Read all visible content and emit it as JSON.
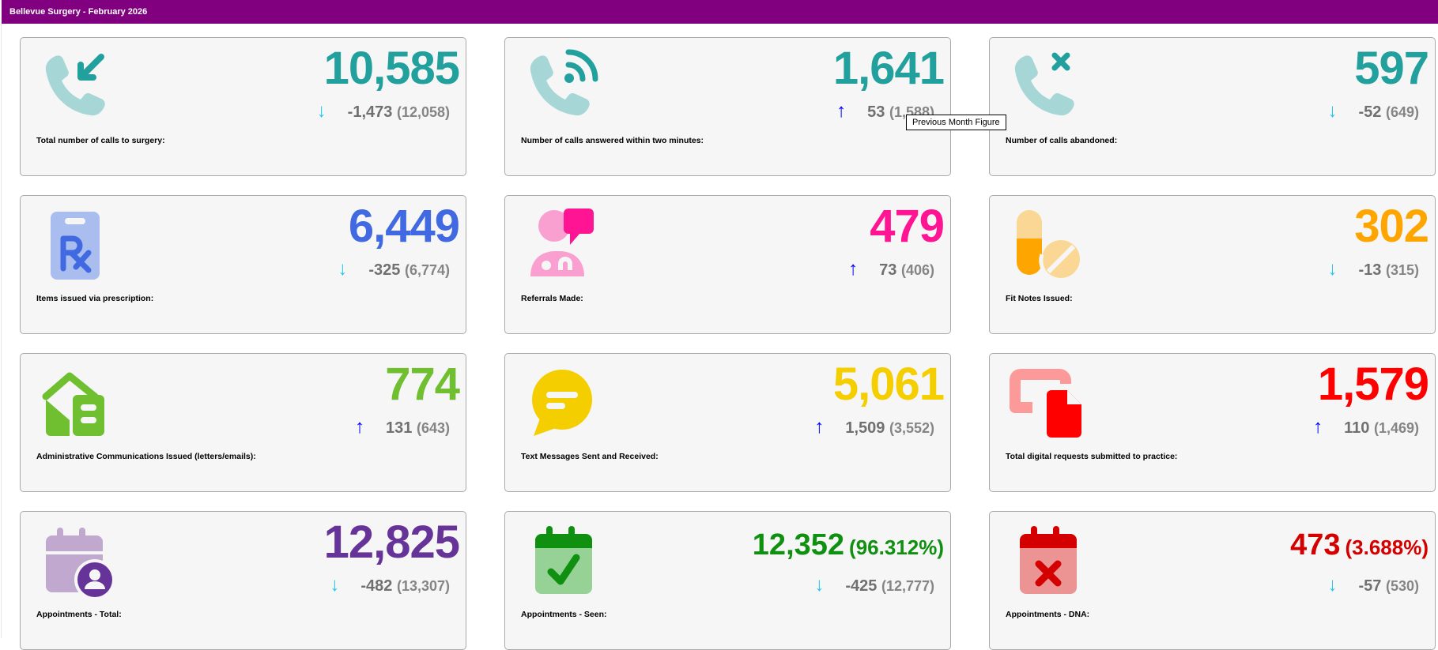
{
  "header": {
    "title": "Bellevue Surgery - February 2026"
  },
  "tooltip": {
    "text": "Previous Month Figure"
  },
  "cards": [
    {
      "id": "calls-total",
      "label": "Total number of calls to surgery:",
      "value": "10,585",
      "percent": "",
      "change": "-1,473",
      "previous": "(12,058)",
      "trend": "down",
      "color": "#21a09d",
      "icon": "phone-incoming-icon"
    },
    {
      "id": "calls-answered",
      "label": "Number of calls answered within two minutes:",
      "value": "1,641",
      "percent": "",
      "change": "53",
      "previous": "(1,588)",
      "trend": "up",
      "color": "#21a09d",
      "icon": "phone-ringing-icon"
    },
    {
      "id": "calls-abandoned",
      "label": "Number of calls abandoned:",
      "value": "597",
      "percent": "",
      "change": "-52",
      "previous": "(649)",
      "trend": "down",
      "color": "#21a09d",
      "icon": "phone-missed-icon"
    },
    {
      "id": "prescriptions",
      "label": "Items issued via prescription:",
      "value": "6,449",
      "percent": "",
      "change": "-325",
      "previous": "(6,774)",
      "trend": "down",
      "color": "#4169e1",
      "icon": "prescription-clipboard-icon"
    },
    {
      "id": "referrals",
      "label": "Referrals Made:",
      "value": "479",
      "percent": "",
      "change": "73",
      "previous": "(406)",
      "trend": "up",
      "color": "#ff1493",
      "icon": "doctor-message-icon"
    },
    {
      "id": "fit-notes",
      "label": "Fit Notes Issued:",
      "value": "302",
      "percent": "",
      "change": "-13",
      "previous": "(315)",
      "trend": "down",
      "color": "#ffa500",
      "icon": "pills-icon"
    },
    {
      "id": "admin-comms",
      "label": "Administrative Communications Issued (letters/emails):",
      "value": "774",
      "percent": "",
      "change": "131",
      "previous": "(643)",
      "trend": "up",
      "color": "#70bf30",
      "icon": "mail-house-icon"
    },
    {
      "id": "text-messages",
      "label": "Text Messages Sent and Received:",
      "value": "5,061",
      "percent": "",
      "change": "1,509",
      "previous": "(3,552)",
      "trend": "up",
      "color": "#f5ce00",
      "icon": "chat-bubble-icon"
    },
    {
      "id": "digital-requests",
      "label": "Total digital requests submitted to practice:",
      "value": "1,579",
      "percent": "",
      "change": "110",
      "previous": "(1,469)",
      "trend": "up",
      "color": "#ff0000",
      "icon": "digital-document-icon"
    },
    {
      "id": "appointments-total",
      "label": "Appointments - Total:",
      "value": "12,825",
      "percent": "",
      "change": "-482",
      "previous": "(13,307)",
      "trend": "down",
      "color": "#663399",
      "icon": "calendar-user-icon"
    },
    {
      "id": "appointments-seen",
      "label": "Appointments - Seen:",
      "value": "12,352",
      "percent": "(96.312%)",
      "change": "-425",
      "previous": "(12,777)",
      "trend": "down",
      "color": "#109010",
      "icon": "calendar-check-icon"
    },
    {
      "id": "appointments-dna",
      "label": "Appointments - DNA:",
      "value": "473",
      "percent": "(3.688%)",
      "change": "-57",
      "previous": "(530)",
      "trend": "down",
      "color": "#d40000",
      "icon": "calendar-x-icon"
    }
  ],
  "arrows": {
    "up": "↑",
    "down": "↓"
  }
}
